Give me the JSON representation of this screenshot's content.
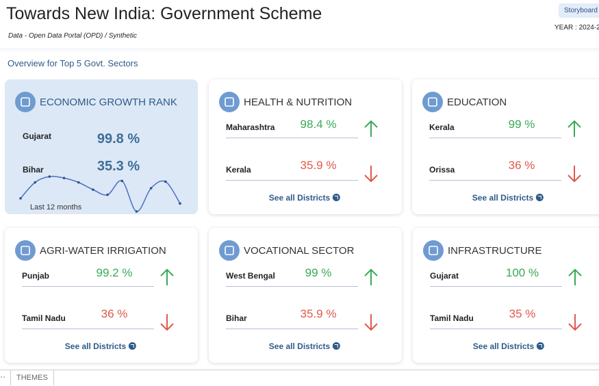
{
  "header": {
    "title": "Towards New India: Government Scheme",
    "subtitle": "Data - Open Data Portal (OPD) / Synthetic",
    "button": "Storyboard",
    "year": "YEAR : 2024-2"
  },
  "overview": "Overview for Top 5 Govt. Sectors",
  "cards": [
    {
      "title": "ECONOMIC GROWTH RANK",
      "rows": [
        {
          "name": "Gujarat",
          "value": "99.8 %"
        },
        {
          "name": "Bihar",
          "value": "35.3 %"
        }
      ],
      "sparkline": {
        "label": "Last 12 months",
        "values": [
          20,
          42,
          50,
          48,
          42,
          32,
          25,
          44,
          2,
          34,
          43,
          13
        ]
      }
    },
    {
      "title": "HEALTH & NUTRITION",
      "rows": [
        {
          "name": "Maharashtra",
          "value": "98.4 %"
        },
        {
          "name": "Kerala",
          "value": "35.9 %"
        }
      ],
      "link": "See all Districts"
    },
    {
      "title": "EDUCATION",
      "rows": [
        {
          "name": "Kerala",
          "value": "99 %"
        },
        {
          "name": "Orissa",
          "value": "36 %"
        }
      ],
      "link": "See all Districts"
    },
    {
      "title": "AGRI-WATER IRRIGATION",
      "rows": [
        {
          "name": "Punjab",
          "value": "99.2 %"
        },
        {
          "name": "Tamil Nadu",
          "value": "36 %"
        }
      ],
      "link": "See all Districts"
    },
    {
      "title": "VOCATIONAL SECTOR",
      "rows": [
        {
          "name": "West Bengal",
          "value": "99 %"
        },
        {
          "name": "Bihar",
          "value": "35.9 %"
        }
      ],
      "link": "See all Districts"
    },
    {
      "title": "INFRASTRUCTURE",
      "rows": [
        {
          "name": "Gujarat",
          "value": "100 %"
        },
        {
          "name": "Tamil Nadu",
          "value": "35 %"
        }
      ],
      "link": "See all Districts"
    }
  ],
  "footer": {
    "tab": "THEMES"
  }
}
